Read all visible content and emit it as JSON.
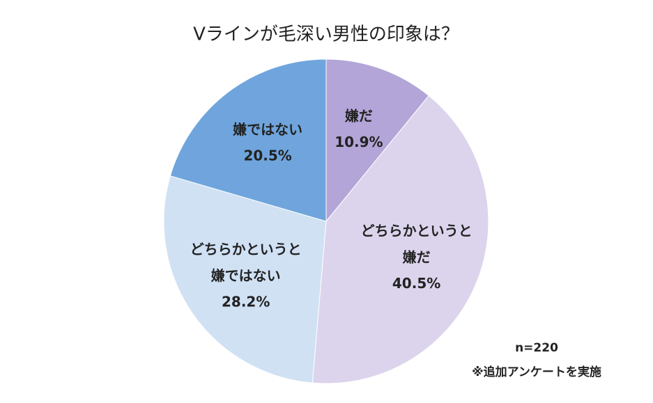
{
  "chart_data": {
    "type": "pie",
    "title": "Vラインが毛深い男性の印象は？",
    "categories": [
      "嫌だ",
      "どちらかというと\n嫌だ",
      "どちらかというと\n嫌ではない",
      "嫌ではない"
    ],
    "values": [
      10.9,
      40.5,
      28.2,
      20.5
    ],
    "value_labels": [
      "10.9%",
      "40.5%",
      "28.2%",
      "20.5%"
    ],
    "colors": [
      "#b3a5d7",
      "#dcd4ec",
      "#d0e1f4",
      "#6fa5dc"
    ],
    "annotations": [
      "n=220",
      "※追加アンケートを実施"
    ]
  }
}
